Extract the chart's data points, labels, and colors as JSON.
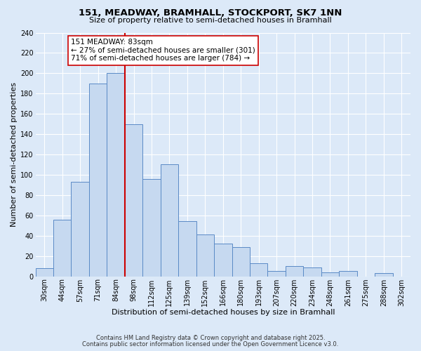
{
  "title": "151, MEADWAY, BRAMHALL, STOCKPORT, SK7 1NN",
  "subtitle": "Size of property relative to semi-detached houses in Bramhall",
  "xlabel": "Distribution of semi-detached houses by size in Bramhall",
  "ylabel": "Number of semi-detached properties",
  "categories": [
    "30sqm",
    "44sqm",
    "57sqm",
    "71sqm",
    "84sqm",
    "98sqm",
    "112sqm",
    "125sqm",
    "139sqm",
    "152sqm",
    "166sqm",
    "180sqm",
    "193sqm",
    "207sqm",
    "220sqm",
    "234sqm",
    "248sqm",
    "261sqm",
    "275sqm",
    "288sqm",
    "302sqm"
  ],
  "values": [
    8,
    56,
    93,
    190,
    200,
    150,
    96,
    110,
    54,
    41,
    32,
    29,
    13,
    5,
    10,
    9,
    4,
    5,
    0,
    3,
    0
  ],
  "bar_color": "#c6d9f0",
  "bar_edge_color": "#5a8ac6",
  "highlight_index": 4,
  "highlight_line_color": "#cc0000",
  "annotation_text": "151 MEADWAY: 83sqm\n← 27% of semi-detached houses are smaller (301)\n71% of semi-detached houses are larger (784) →",
  "annotation_box_color": "#ffffff",
  "annotation_box_edge": "#cc0000",
  "ylim": [
    0,
    240
  ],
  "yticks": [
    0,
    20,
    40,
    60,
    80,
    100,
    120,
    140,
    160,
    180,
    200,
    220,
    240
  ],
  "background_color": "#dce9f8",
  "grid_color": "#ffffff",
  "footer1": "Contains HM Land Registry data © Crown copyright and database right 2025.",
  "footer2": "Contains public sector information licensed under the Open Government Licence v3.0.",
  "title_fontsize": 9.5,
  "subtitle_fontsize": 8,
  "axis_label_fontsize": 8,
  "tick_fontsize": 7,
  "annotation_fontsize": 7.5
}
